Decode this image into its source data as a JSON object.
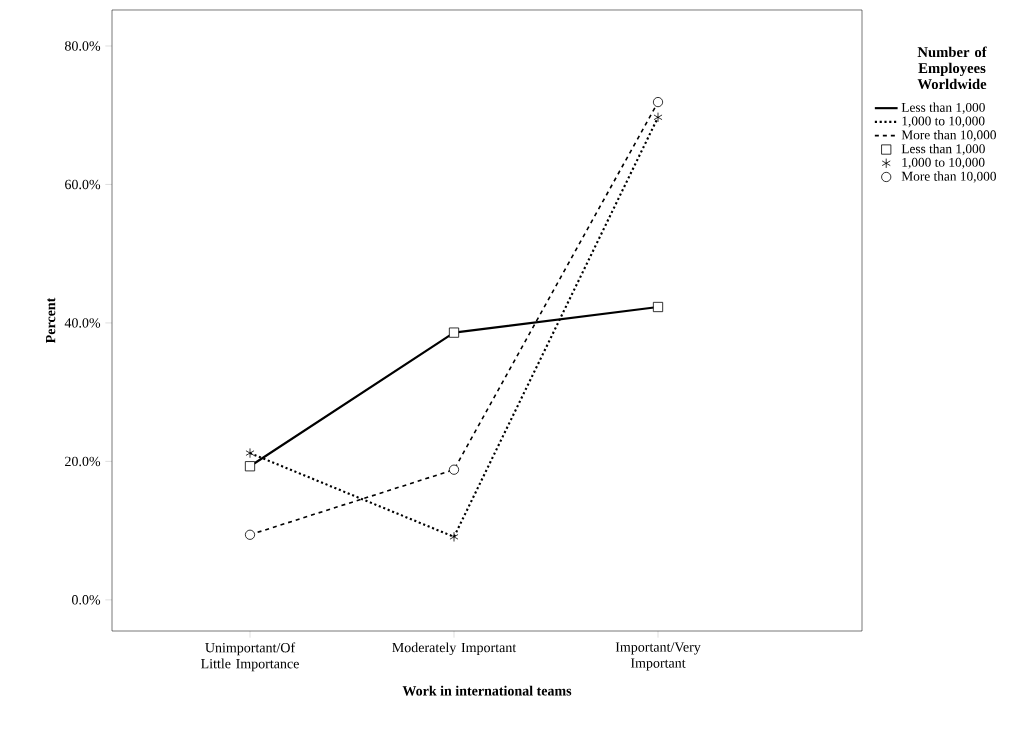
{
  "chart_data": {
    "type": "line",
    "xlabel": "Work in international teams",
    "ylabel": "Percent",
    "legend_title": "Number of Employees Worldwide",
    "categories": [
      "Unimportant/Of Little Importance",
      "Moderately Important",
      "Important/Very Important"
    ],
    "series": [
      {
        "name": "Less than 1,000",
        "color": "#000000",
        "values": [
          19.3,
          38.6,
          42.3
        ],
        "marker": "square",
        "line_style": "solid"
      },
      {
        "name": "1,000 to 10,000",
        "color": "#000000",
        "values": [
          21.2,
          9.1,
          69.7
        ],
        "marker": "cross",
        "line_style": "dotted"
      },
      {
        "name": "More than 10,000",
        "color": "#000000",
        "values": [
          9.4,
          18.8,
          71.9
        ],
        "marker": "circle",
        "line_style": "dashed"
      }
    ],
    "ylim": [
      -4.5,
      85.2
    ],
    "yticks": [
      {
        "value": 0,
        "label": "0.0%"
      },
      {
        "value": 20,
        "label": "20.0%"
      },
      {
        "value": 40,
        "label": "40.0%"
      },
      {
        "value": 60,
        "label": "60.0%"
      },
      {
        "value": 80,
        "label": "80.0%"
      }
    ],
    "grid": false,
    "legend": "right"
  }
}
